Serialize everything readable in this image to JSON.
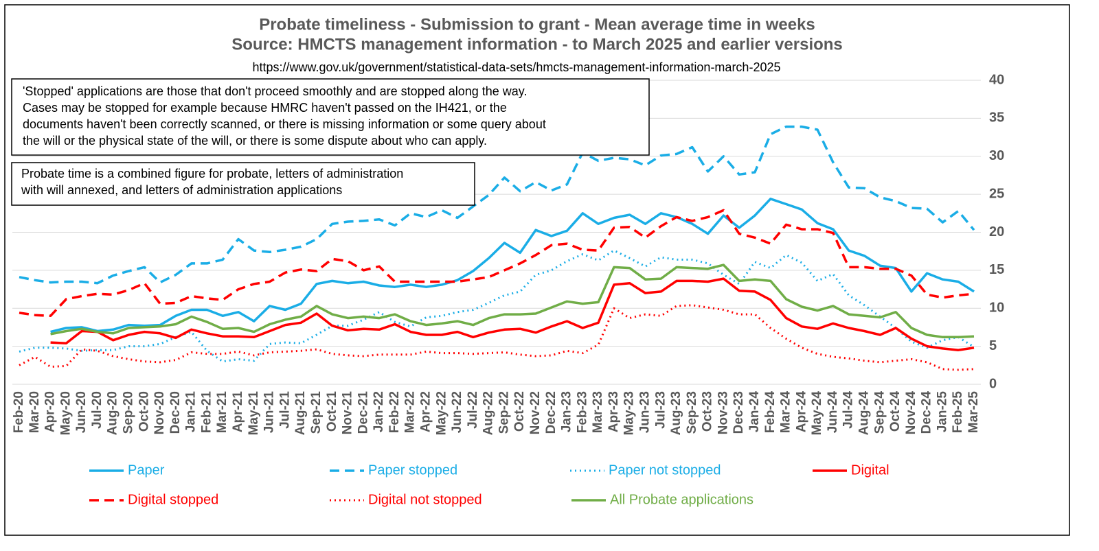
{
  "chart_data": {
    "type": "line",
    "title": [
      "Probate timeliness - Submission to grant - Mean average time in weeks",
      "Source: HMCTS management information - to March 2025 and earlier versions"
    ],
    "subtitle": "https://www.gov.uk/government/statistical-data-sets/hmcts-management-information-march-2025",
    "notes": [
      [
        "'Stopped' applications are those that don't proceed smoothly and are stopped along the way.",
        "Cases may be stopped for example because HMRC haven't passed on the IH421, or the",
        "documents haven't been correctly scanned, or there is missing information or some query about",
        "the will or the physical state of the will, or there is some dispute about who can apply."
      ],
      [
        "Probate time is a combined figure for probate, letters of administration",
        "with will annexed, and letters of administration applications"
      ]
    ],
    "categories": [
      "Feb-20",
      "Mar-20",
      "Apr-20",
      "May-20",
      "Jun-20",
      "Jul-20",
      "Aug-20",
      "Sep-20",
      "Oct-20",
      "Nov-20",
      "Dec-20",
      "Jan-21",
      "Feb-21",
      "Mar-21",
      "Apr-21",
      "May-21",
      "Jun-21",
      "Jul-21",
      "Aug-21",
      "Sep-21",
      "Oct-21",
      "Nov-21",
      "Dec-21",
      "Jan-22",
      "Feb-22",
      "Mar-22",
      "Apr-22",
      "May-22",
      "Jun-22",
      "Jul-22",
      "Aug-22",
      "Sep-22",
      "Oct-22",
      "Nov-22",
      "Dec-22",
      "Jan-23",
      "Feb-23",
      "Mar-23",
      "Apr-23",
      "May-23",
      "Jun-23",
      "Jul-23",
      "Aug-23",
      "Sep-23",
      "Oct-23",
      "Nov-23",
      "Dec-23",
      "Jan-24",
      "Feb-24",
      "Mar-24",
      "Apr-24",
      "May-24",
      "Jun-24",
      "Jul-24",
      "Aug-24",
      "Sep-24",
      "Oct-24",
      "Nov-24",
      "Dec-24",
      "Jan-25",
      "Feb-25",
      "Mar-25"
    ],
    "ylim": [
      0,
      40
    ],
    "yticks": [
      0,
      5,
      10,
      15,
      20,
      25,
      30,
      35,
      40
    ],
    "y_axis_side": "right",
    "grid": true,
    "series": [
      {
        "name": "Paper",
        "color": "#1AADE6",
        "dash": "solid",
        "values": [
          null,
          null,
          6.9,
          7.4,
          7.5,
          7.0,
          7.2,
          7.8,
          7.7,
          7.8,
          9.0,
          9.8,
          9.8,
          9.0,
          9.5,
          8.3,
          10.3,
          9.8,
          10.6,
          13.2,
          13.6,
          13.3,
          13.5,
          13.0,
          12.8,
          13.1,
          12.8,
          13.1,
          13.7,
          14.9,
          16.6,
          18.6,
          17.3,
          20.3,
          19.5,
          20.2,
          22.5,
          21.1,
          21.9,
          22.3,
          21.1,
          22.5,
          22.0,
          21.1,
          19.8,
          22.2,
          20.6,
          22.2,
          24.4,
          23.7,
          23.0,
          21.2,
          20.4,
          17.6,
          16.9,
          15.6,
          15.3,
          12.2,
          14.6,
          13.8,
          13.5,
          12.2
        ]
      },
      {
        "name": "Paper stopped",
        "color": "#1AADE6",
        "dash": "dashed",
        "values": [
          14.1,
          13.7,
          13.4,
          13.5,
          13.5,
          13.3,
          14.3,
          14.9,
          15.4,
          13.4,
          14.4,
          15.9,
          15.9,
          16.4,
          19.1,
          17.6,
          17.4,
          17.7,
          18.1,
          19.1,
          21.1,
          21.4,
          21.5,
          21.7,
          20.9,
          22.5,
          22.0,
          22.9,
          21.9,
          23.4,
          24.9,
          27.2,
          25.4,
          26.6,
          25.5,
          26.3,
          30.5,
          29.4,
          29.8,
          29.6,
          28.8,
          30.1,
          30.3,
          31.2,
          28.0,
          30.0,
          27.6,
          27.9,
          32.9,
          33.9,
          33.9,
          33.5,
          29.2,
          25.9,
          25.8,
          24.6,
          24.1,
          23.2,
          23.1,
          21.3,
          22.8,
          20.3
        ]
      },
      {
        "name": "Paper not stopped",
        "color": "#1AADE6",
        "dash": "dotted",
        "values": [
          4.3,
          4.8,
          4.8,
          4.7,
          4.4,
          4.5,
          4.5,
          5.0,
          5.0,
          5.3,
          6.2,
          6.9,
          4.4,
          3.0,
          3.3,
          3.1,
          5.3,
          5.5,
          5.4,
          6.5,
          7.7,
          7.7,
          8.5,
          9.5,
          8.2,
          7.6,
          8.8,
          9.0,
          9.5,
          9.8,
          10.7,
          11.7,
          12.2,
          14.4,
          15.0,
          16.2,
          17.1,
          16.3,
          17.6,
          16.6,
          15.5,
          16.7,
          16.4,
          16.4,
          15.9,
          14.4,
          13.2,
          16.1,
          15.3,
          17.0,
          16.0,
          13.6,
          14.5,
          11.7,
          10.4,
          8.9,
          7.4,
          5.6,
          4.8,
          5.8,
          6.2,
          4.9
        ]
      },
      {
        "name": "Digital",
        "color": "#FF0000",
        "dash": "solid",
        "values": [
          null,
          null,
          5.5,
          5.4,
          7.0,
          6.9,
          5.8,
          6.5,
          6.9,
          6.7,
          6.1,
          7.2,
          6.7,
          6.3,
          6.3,
          6.2,
          7.0,
          7.8,
          8.1,
          9.3,
          7.7,
          7.1,
          7.3,
          7.2,
          7.9,
          6.9,
          6.5,
          6.5,
          6.9,
          6.2,
          6.8,
          7.2,
          7.3,
          6.8,
          7.6,
          8.3,
          7.4,
          8.1,
          13.1,
          13.3,
          12.0,
          12.2,
          13.6,
          13.6,
          13.5,
          13.9,
          12.3,
          12.2,
          11.1,
          8.7,
          7.6,
          7.3,
          8.0,
          7.4,
          7.0,
          6.5,
          7.4,
          6.0,
          5.0,
          4.7,
          4.5,
          4.8
        ]
      },
      {
        "name": "Digital stopped",
        "color": "#FF0000",
        "dash": "dashed",
        "values": [
          9.4,
          9.1,
          9.0,
          11.2,
          11.6,
          11.9,
          11.8,
          12.4,
          13.3,
          10.6,
          10.7,
          11.6,
          11.3,
          11.1,
          12.5,
          13.2,
          13.5,
          14.7,
          15.1,
          14.9,
          16.5,
          16.2,
          15.0,
          15.5,
          13.5,
          13.5,
          13.5,
          13.5,
          13.5,
          13.8,
          14.1,
          15.0,
          15.9,
          17.0,
          18.3,
          18.5,
          17.7,
          17.6,
          20.6,
          20.7,
          19.3,
          20.8,
          22.0,
          21.5,
          22.0,
          22.9,
          19.8,
          19.3,
          18.5,
          21.0,
          20.4,
          20.4,
          19.9,
          15.4,
          15.4,
          15.2,
          15.2,
          14.3,
          11.8,
          11.4,
          11.7,
          11.9
        ]
      },
      {
        "name": "Digital not stopped",
        "color": "#FF0000",
        "dash": "dotted",
        "values": [
          2.5,
          3.6,
          2.3,
          2.4,
          4.6,
          4.4,
          3.7,
          3.3,
          3.0,
          2.9,
          3.2,
          4.2,
          4.0,
          4.0,
          4.3,
          3.8,
          4.2,
          4.3,
          4.4,
          4.6,
          4.0,
          3.8,
          3.7,
          3.9,
          3.9,
          3.9,
          4.3,
          4.1,
          4.1,
          4.0,
          4.1,
          4.2,
          3.9,
          3.7,
          3.8,
          4.4,
          4.1,
          5.2,
          10.0,
          8.7,
          9.2,
          9.0,
          10.3,
          10.4,
          10.1,
          9.8,
          9.2,
          9.2,
          7.4,
          6.0,
          4.8,
          4.0,
          3.6,
          3.4,
          3.1,
          2.9,
          3.1,
          3.3,
          2.9,
          2.0,
          1.9,
          2.0
        ]
      },
      {
        "name": "All Probate applications",
        "color": "#70AD47",
        "dash": "solid",
        "values": [
          null,
          null,
          6.6,
          7.0,
          7.3,
          6.9,
          6.7,
          7.4,
          7.5,
          7.6,
          7.9,
          8.9,
          8.2,
          7.3,
          7.4,
          6.9,
          7.9,
          8.5,
          8.9,
          10.3,
          9.2,
          8.7,
          8.9,
          8.7,
          9.2,
          8.3,
          7.8,
          8.0,
          8.3,
          7.8,
          8.7,
          9.2,
          9.2,
          9.3,
          10.1,
          10.9,
          10.6,
          10.8,
          15.4,
          15.3,
          13.8,
          13.9,
          15.4,
          15.3,
          15.2,
          15.7,
          13.6,
          13.8,
          13.6,
          11.2,
          10.2,
          9.7,
          10.3,
          9.2,
          9.0,
          8.8,
          9.5,
          7.4,
          6.5,
          6.2,
          6.2,
          6.3
        ]
      }
    ]
  }
}
